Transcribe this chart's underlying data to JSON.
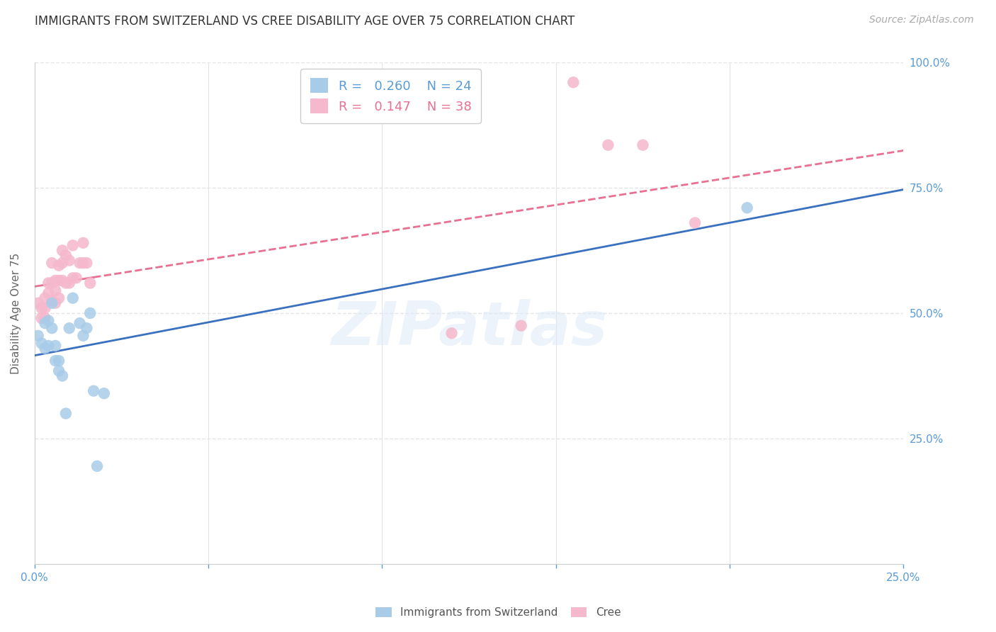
{
  "title": "IMMIGRANTS FROM SWITZERLAND VS CREE DISABILITY AGE OVER 75 CORRELATION CHART",
  "source": "Source: ZipAtlas.com",
  "ylabel": "Disability Age Over 75",
  "xlim": [
    0.0,
    0.25
  ],
  "ylim": [
    0.0,
    1.0
  ],
  "color_swiss": "#a8cce8",
  "color_cree": "#f5b8cc",
  "color_swiss_line": "#3a70c0",
  "color_cree_line": "#e87090",
  "swiss_x": [
    0.001,
    0.002,
    0.003,
    0.003,
    0.004,
    0.004,
    0.005,
    0.005,
    0.006,
    0.006,
    0.007,
    0.007,
    0.008,
    0.009,
    0.01,
    0.011,
    0.013,
    0.014,
    0.015,
    0.016,
    0.017,
    0.018,
    0.02,
    0.205
  ],
  "swiss_y": [
    0.455,
    0.44,
    0.48,
    0.43,
    0.485,
    0.435,
    0.52,
    0.47,
    0.435,
    0.405,
    0.405,
    0.385,
    0.375,
    0.3,
    0.47,
    0.53,
    0.48,
    0.455,
    0.47,
    0.5,
    0.345,
    0.195,
    0.34,
    0.71
  ],
  "cree_x": [
    0.001,
    0.002,
    0.002,
    0.003,
    0.003,
    0.003,
    0.004,
    0.004,
    0.005,
    0.005,
    0.005,
    0.006,
    0.006,
    0.006,
    0.007,
    0.007,
    0.007,
    0.008,
    0.008,
    0.008,
    0.009,
    0.009,
    0.01,
    0.01,
    0.011,
    0.011,
    0.012,
    0.013,
    0.014,
    0.014,
    0.015,
    0.016,
    0.12,
    0.14,
    0.155,
    0.165,
    0.175,
    0.19
  ],
  "cree_y": [
    0.52,
    0.51,
    0.49,
    0.53,
    0.51,
    0.49,
    0.56,
    0.54,
    0.6,
    0.56,
    0.525,
    0.565,
    0.545,
    0.52,
    0.595,
    0.565,
    0.53,
    0.625,
    0.6,
    0.565,
    0.615,
    0.56,
    0.605,
    0.56,
    0.635,
    0.57,
    0.57,
    0.6,
    0.64,
    0.6,
    0.6,
    0.56,
    0.46,
    0.475,
    0.96,
    0.835,
    0.835,
    0.68
  ],
  "grid_color": "#e5e5e5",
  "title_fontsize": 12,
  "axis_label_fontsize": 11,
  "tick_fontsize": 11,
  "legend_fontsize": 13,
  "source_fontsize": 10,
  "watermark": "ZIPatlas"
}
